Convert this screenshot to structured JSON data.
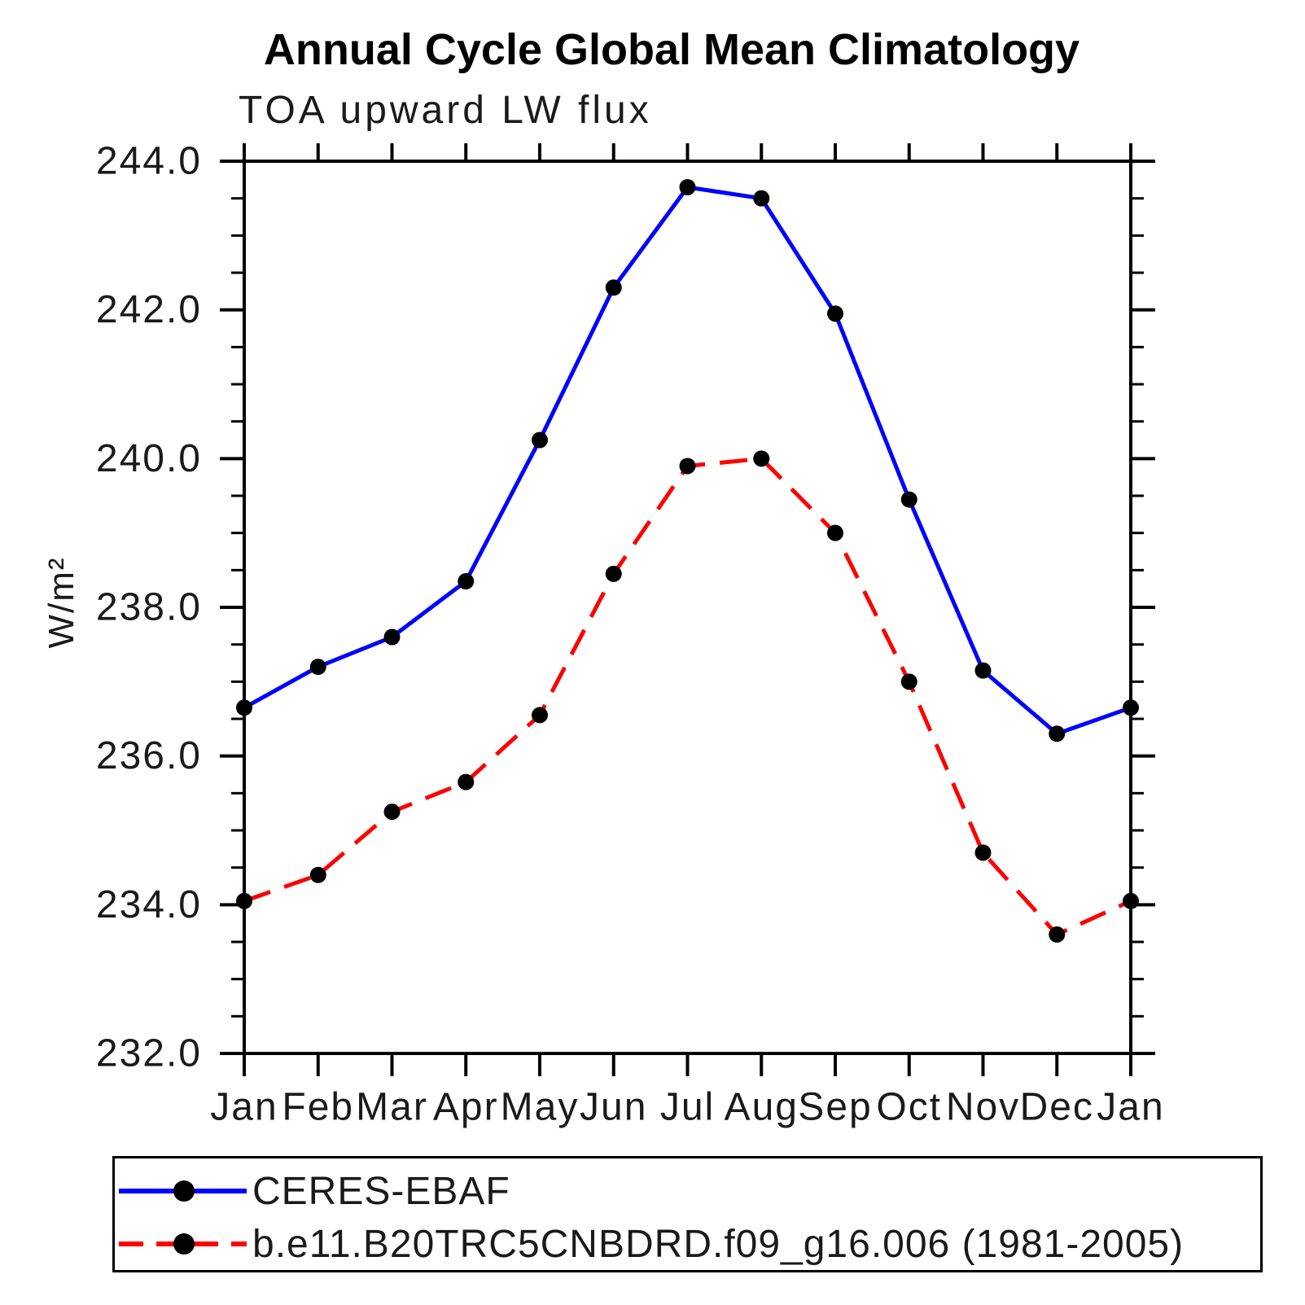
{
  "chart_data": {
    "type": "line",
    "title": "Annual Cycle Global Mean Climatology",
    "subtitle": "TOA upward LW flux",
    "ylabel": "W/m²",
    "xlabel": "",
    "categories": [
      "Jan",
      "Feb",
      "Mar",
      "Apr",
      "May",
      "Jun",
      "Jul",
      "Aug",
      "Sep",
      "Oct",
      "Nov",
      "Dec",
      "Jan"
    ],
    "ylim": [
      232.0,
      244.0
    ],
    "ytick_step": 2.0,
    "ytick_minor_step": 0.5,
    "yticks": [
      232.0,
      234.0,
      236.0,
      238.0,
      240.0,
      242.0,
      244.0
    ],
    "ytick_labels": [
      "232.0",
      "234.0",
      "236.0",
      "238.0",
      "240.0",
      "242.0",
      "244.0"
    ],
    "grid": false,
    "frame": true,
    "legend_position": "bottom-outside",
    "axis_color": "#000000",
    "marker": "filled-circle",
    "series": [
      {
        "name": "CERES-EBAF",
        "color": "#0000ff",
        "style": "solid",
        "marker_color": "#000000",
        "values": [
          236.65,
          237.2,
          237.6,
          238.35,
          240.25,
          242.3,
          243.65,
          243.5,
          241.95,
          239.45,
          237.15,
          236.3,
          236.65
        ]
      },
      {
        "name": "b.e11.B20TRC5CNBDRD.f09_g16.006 (1981-2005)",
        "color": "#ff0000",
        "style": "dashed",
        "marker_color": "#000000",
        "values": [
          234.05,
          234.4,
          235.25,
          235.65,
          236.55,
          238.45,
          239.9,
          240.0,
          239.0,
          237.0,
          234.7,
          233.6,
          234.05
        ]
      }
    ]
  }
}
